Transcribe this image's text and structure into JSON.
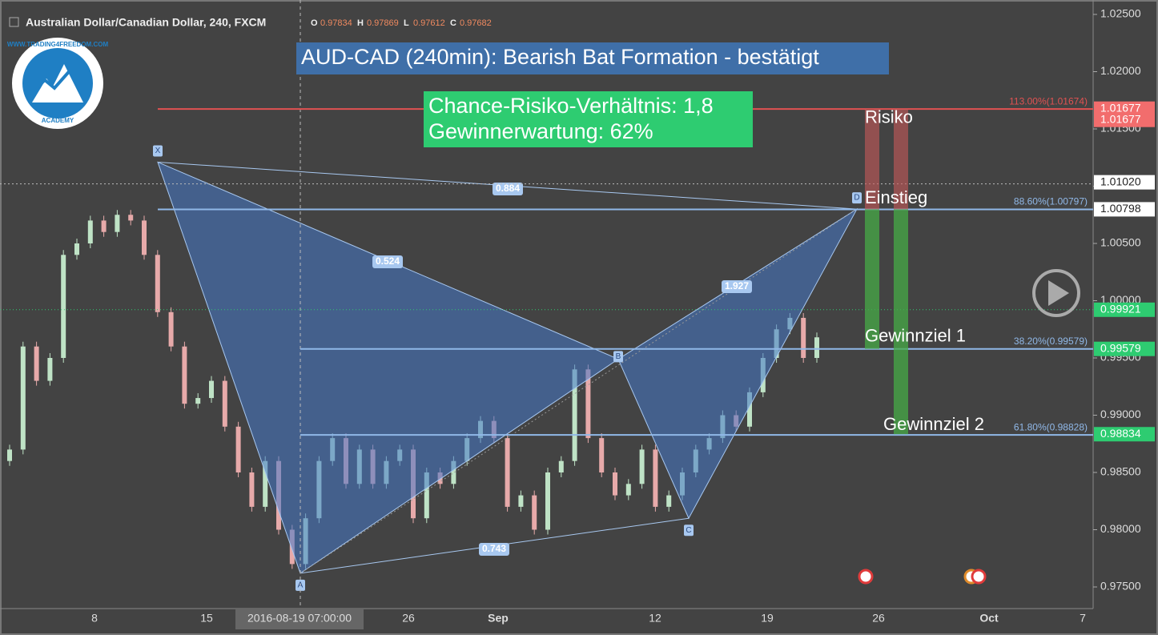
{
  "header": {
    "symbol": "Australian Dollar/Canadian Dollar, 240, FXCM",
    "ohlc": [
      {
        "label": "O",
        "value": 0.97834
      },
      {
        "label": "H",
        "value": 0.97869
      },
      {
        "label": "L",
        "value": 0.97612
      },
      {
        "label": "C",
        "value": 0.97682
      }
    ]
  },
  "logo": {
    "url": "WWW.TRADING4FREEDOM.COM",
    "sub": "ACADEMY"
  },
  "title": "AUD-CAD (240min): Bearish Bat Formation - bestätigt",
  "stats": [
    "Chance-Risiko-Verhältnis: 1,8",
    "Gewinnerwartung: 62%"
  ],
  "price_axis": {
    "ylim": [
      0.975,
      1.025
    ],
    "ticks": [
      {
        "value": 1.025,
        "label": "1.02500"
      },
      {
        "value": 1.02,
        "label": "1.02000"
      },
      {
        "value": 1.015,
        "label": "1.01500"
      },
      {
        "value": 1.01,
        "label": "1.01000"
      },
      {
        "value": 1.005,
        "label": "1.00500"
      },
      {
        "value": 1.0,
        "label": "1.00000"
      },
      {
        "value": 0.995,
        "label": "0.99500"
      },
      {
        "value": 0.99,
        "label": "0.99000"
      },
      {
        "value": 0.985,
        "label": "0.98500"
      },
      {
        "value": 0.98,
        "label": "0.98000"
      },
      {
        "value": 0.975,
        "label": "0.97500"
      }
    ]
  },
  "price_markers": [
    {
      "value": 1.01677,
      "color": "#f26d6d"
    },
    {
      "value": 1.0102,
      "color": "#ffffff"
    },
    {
      "value": 1.00798,
      "color": "#ffffff"
    },
    {
      "value": 0.99921,
      "color": "#2ecc71"
    },
    {
      "value": 0.99579,
      "color": "#2ecc71"
    },
    {
      "value": 0.98834,
      "color": "#2ecc71"
    }
  ],
  "fib_levels": [
    {
      "value": 1.01674,
      "label": "113.00%(1.01674)",
      "color": "#e05252"
    },
    {
      "value": 1.00797,
      "label": "88.60%(1.00797)",
      "color": "#90b8e8"
    },
    {
      "value": 0.99579,
      "label": "38.20%(0.99579)",
      "color": "#90b8e8"
    },
    {
      "value": 0.98828,
      "label": "61.80%(0.98828)",
      "color": "#90b8e8"
    }
  ],
  "pattern": {
    "points": [
      {
        "label": "X",
        "value": 1.0121
      },
      {
        "label": "A",
        "value": 0.9762
      },
      {
        "label": "B",
        "value": 0.9949
      },
      {
        "label": "C",
        "value": 0.981
      },
      {
        "label": "D",
        "value": 1.008
      }
    ],
    "ratios": [
      "0.884",
      "0.524",
      "1.927",
      "0.743"
    ]
  },
  "trade": {
    "risk": "Risiko",
    "entry": "Einstieg",
    "target1": "Gewinnziel 1",
    "target2": "Gewinnziel 2",
    "stop": 1.01677,
    "entry_price": 1.00798,
    "tp1": 0.99579,
    "tp2": 0.98834
  },
  "date_axis": [
    "8",
    "15",
    "2016-08-19 07:00:00",
    "26",
    "Sep",
    "12",
    "19",
    "26",
    "Oct",
    "7"
  ],
  "closes": [
    0.987,
    0.996,
    0.993,
    0.995,
    1.004,
    1.005,
    1.007,
    1.006,
    1.0075,
    1.007,
    1.004,
    0.999,
    0.996,
    0.991,
    0.9915,
    0.993,
    0.989,
    0.985,
    0.982,
    0.986,
    0.98,
    0.977,
    0.981,
    0.986,
    0.988,
    0.984,
    0.987,
    0.984,
    0.986,
    0.987,
    0.981,
    0.985,
    0.984,
    0.986,
    0.988,
    0.9895,
    0.988,
    0.982,
    0.983,
    0.98,
    0.985,
    0.986,
    0.994,
    0.988,
    0.985,
    0.983,
    0.984,
    0.987,
    0.982,
    0.983,
    0.985,
    0.987,
    0.988,
    0.99,
    0.989,
    0.992,
    0.995,
    0.9975,
    0.9985,
    0.995,
    0.9968
  ]
}
